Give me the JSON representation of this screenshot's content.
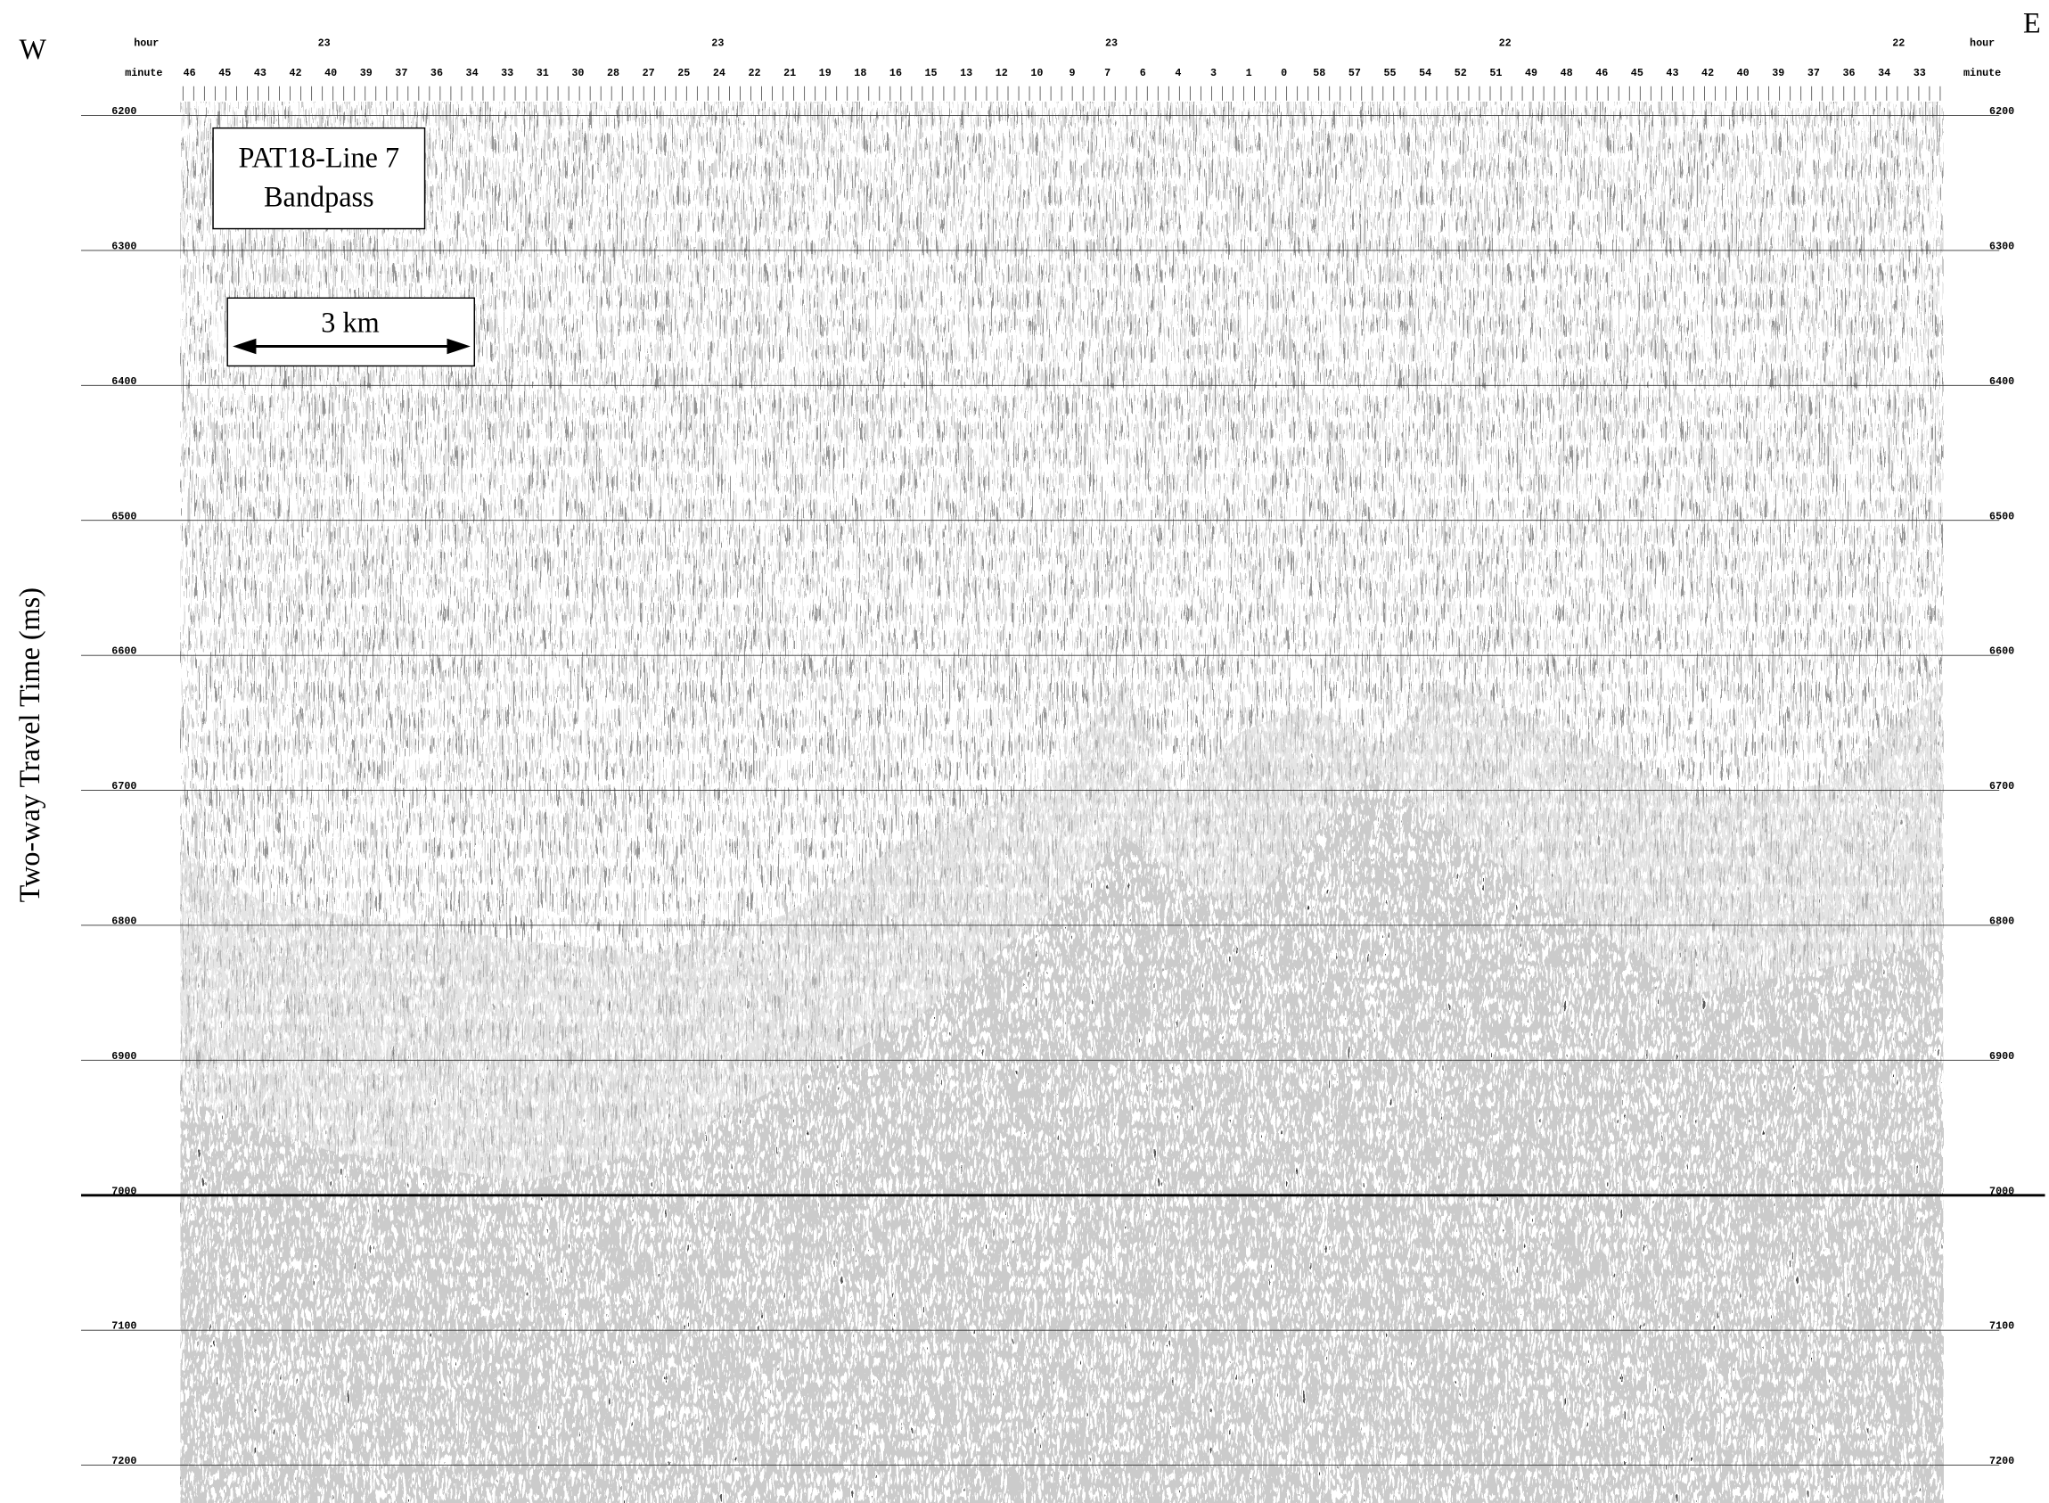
{
  "labels": {
    "west": "W",
    "east": "E"
  },
  "axes": {
    "hour_label": "hour",
    "minute_label": "minute",
    "hours": [
      23,
      23,
      23,
      22,
      22
    ],
    "minutes": [
      46,
      45,
      43,
      42,
      40,
      39,
      37,
      36,
      34,
      33,
      31,
      30,
      28,
      27,
      25,
      24,
      22,
      21,
      19,
      18,
      16,
      15,
      13,
      12,
      10,
      9,
      7,
      6,
      4,
      3,
      1,
      0,
      58,
      57,
      55,
      54,
      52,
      51,
      49,
      48,
      46,
      45,
      43,
      42,
      40,
      39,
      37,
      36,
      34,
      33
    ],
    "y_title": "Two-way Travel Time (ms)",
    "ylim": [
      6190,
      7228
    ],
    "yticks": [
      6200,
      6300,
      6400,
      6500,
      6600,
      6700,
      6800,
      6900,
      7000,
      7100,
      7200
    ]
  },
  "legend_box": {
    "line1": "PAT18-Line 7",
    "line2": "Bandpass"
  },
  "scale_bar": "3 km"
}
